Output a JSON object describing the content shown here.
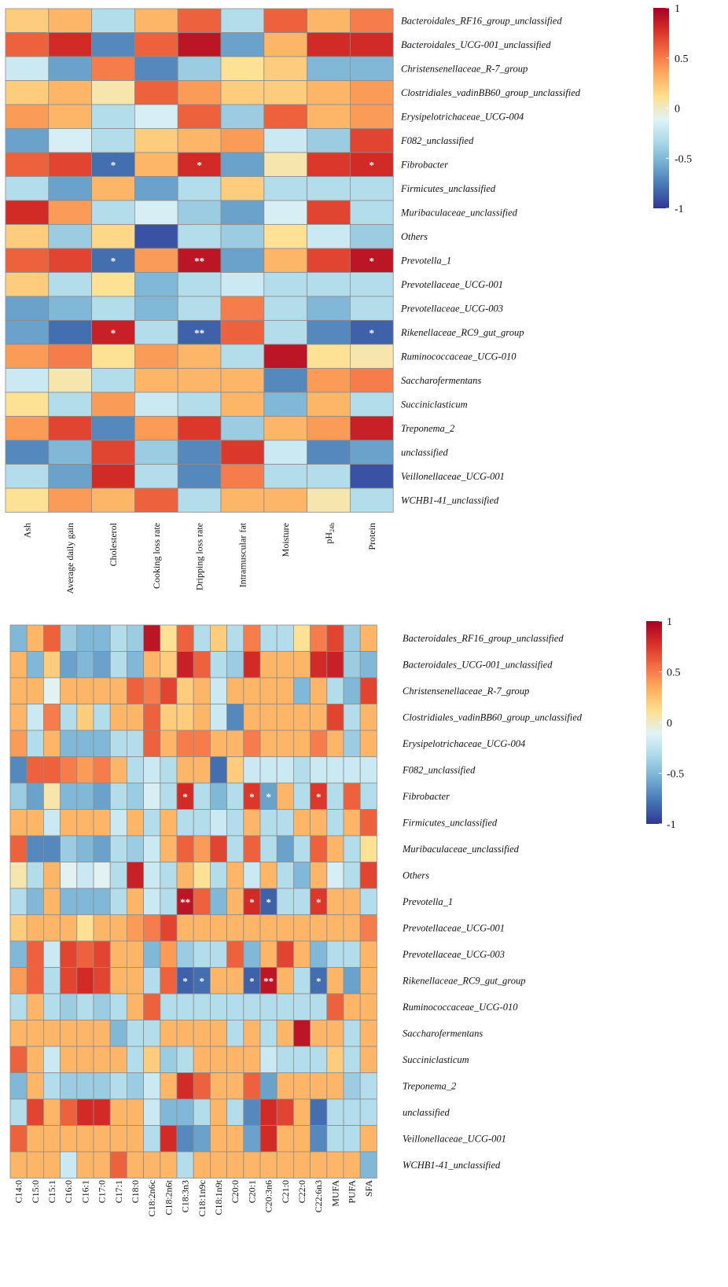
{
  "colors": {
    "scale": [
      "#313695",
      "#4575b4",
      "#74add1",
      "#abd9e9",
      "#e0f3f8",
      "#fee090",
      "#fdae61",
      "#f46d43",
      "#d73027",
      "#a50026"
    ],
    "grid": "#8c8c8c",
    "significance": "#ffffff"
  },
  "chart_data": [
    {
      "type": "heatmap",
      "title": "",
      "rows": [
        "Bacteroidales_RF16_group_unclassified",
        "Bacteroidales_UCG-001_unclassified",
        "Christensenellaceae_R-7_group",
        "Clostridiales_vadinBB60_group_unclassified",
        "Erysipelotrichaceae_UCG-004",
        "F082_unclassified",
        "Fibrobacter",
        "Firmicutes_unclassified",
        "Muribaculaceae_unclassified",
        "Others",
        "Prevotella_1",
        "Prevotellaceae_UCG-001",
        "Prevotellaceae_UCG-003",
        "Rikenellaceae_RC9_gut_group",
        "Ruminococcaceae_UCG-010",
        "Saccharofermentans",
        "Succiniclasticum",
        "Treponema_2",
        "unclassified",
        "Veillonellaceae_UCG-001",
        "WCHB1-41_unclassified"
      ],
      "columns": [
        "Ash",
        "Average daily gain",
        "Cholesterol",
        "Cooking loss rate",
        "Dripping loss rate",
        "Intramuscular fat",
        "Moisture",
        "pH",
        "Protein"
      ],
      "values": [
        [
          0.2,
          0.3,
          -0.3,
          0.3,
          0.6,
          -0.3,
          0.6,
          0.3,
          0.5
        ],
        [
          0.6,
          0.8,
          -0.7,
          0.6,
          0.9,
          -0.6,
          0.3,
          0.8,
          0.8
        ],
        [
          -0.2,
          -0.6,
          0.5,
          -0.7,
          -0.4,
          0.1,
          0.2,
          -0.5,
          -0.5
        ],
        [
          0.2,
          0.3,
          0.05,
          0.6,
          0.4,
          0.2,
          0.2,
          0.3,
          0.4
        ],
        [
          0.4,
          0.3,
          -0.3,
          -0.15,
          0.6,
          -0.4,
          0.6,
          0.3,
          0.4
        ],
        [
          -0.6,
          -0.15,
          -0.3,
          0.2,
          0.3,
          0.4,
          -0.2,
          -0.4,
          0.7
        ],
        [
          0.6,
          0.7,
          -0.8,
          0.3,
          0.8,
          -0.6,
          0.05,
          0.75,
          0.8
        ],
        [
          -0.3,
          -0.6,
          0.3,
          -0.6,
          -0.3,
          0.2,
          -0.3,
          -0.3,
          -0.3
        ],
        [
          0.8,
          0.4,
          -0.3,
          -0.15,
          -0.4,
          -0.6,
          -0.15,
          0.7,
          -0.3
        ],
        [
          0.2,
          -0.4,
          0.15,
          -0.9,
          -0.3,
          -0.4,
          0.1,
          -0.2,
          -0.4
        ],
        [
          0.6,
          0.7,
          -0.8,
          0.4,
          0.9,
          -0.6,
          0.3,
          0.7,
          0.9
        ],
        [
          0.2,
          -0.3,
          0.1,
          -0.5,
          -0.3,
          -0.2,
          -0.3,
          -0.3,
          -0.3
        ],
        [
          -0.6,
          -0.5,
          -0.3,
          -0.5,
          -0.3,
          0.5,
          -0.3,
          -0.5,
          -0.3
        ],
        [
          -0.6,
          -0.8,
          0.85,
          -0.3,
          -0.85,
          0.6,
          -0.3,
          -0.7,
          -0.85
        ],
        [
          0.4,
          0.5,
          0.1,
          0.4,
          0.3,
          -0.3,
          0.9,
          0.1,
          0.05
        ],
        [
          -0.2,
          0.05,
          -0.3,
          0.3,
          0.3,
          0.3,
          -0.7,
          0.4,
          0.5
        ],
        [
          0.1,
          -0.3,
          0.4,
          -0.2,
          -0.3,
          0.3,
          -0.5,
          0.3,
          -0.3
        ],
        [
          0.4,
          0.7,
          -0.7,
          0.4,
          0.75,
          -0.4,
          0.3,
          0.4,
          0.85
        ],
        [
          -0.7,
          -0.5,
          0.7,
          -0.4,
          -0.7,
          0.75,
          -0.2,
          -0.7,
          -0.6
        ],
        [
          -0.3,
          -0.6,
          0.8,
          -0.3,
          -0.7,
          0.5,
          -0.3,
          -0.3,
          -0.9
        ],
        [
          0.1,
          0.4,
          0.3,
          0.6,
          -0.3,
          0.3,
          0.3,
          0.05,
          -0.3
        ]
      ],
      "significance": [
        {
          "row": 6,
          "col": 2,
          "label": "*"
        },
        {
          "row": 6,
          "col": 4,
          "label": "*"
        },
        {
          "row": 6,
          "col": 8,
          "label": "*"
        },
        {
          "row": 10,
          "col": 2,
          "label": "*"
        },
        {
          "row": 10,
          "col": 4,
          "label": "**"
        },
        {
          "row": 10,
          "col": 8,
          "label": "*"
        },
        {
          "row": 13,
          "col": 2,
          "label": "*"
        },
        {
          "row": 13,
          "col": 4,
          "label": "**"
        },
        {
          "row": 13,
          "col": 8,
          "label": "*"
        }
      ],
      "colorbar": {
        "range": [
          -1,
          1
        ],
        "ticks": [
          1,
          0.5,
          0,
          -0.5,
          -1
        ],
        "tick_labels": [
          "1",
          "0.5",
          "0",
          "-0.5",
          "-1"
        ]
      }
    },
    {
      "type": "heatmap",
      "title": "",
      "rows": [
        "Bacteroidales_RF16_group_unclassified",
        "Bacteroidales_UCG-001_unclassified",
        "Christensenellaceae_R-7_group",
        "Clostridiales_vadinBB60_group_unclassified",
        "Erysipelotrichaceae_UCG-004",
        "F082_unclassified",
        "Fibrobacter",
        "Firmicutes_unclassified",
        "Muribaculaceae_unclassified",
        "Others",
        "Prevotella_1",
        "Prevotellaceae_UCG-001",
        "Prevotellaceae_UCG-003",
        "Rikenellaceae_RC9_gut_group",
        "Ruminococcaceae_UCG-010",
        "Saccharofermentans",
        "Succiniclasticum",
        "Treponema_2",
        "unclassified",
        "Veillonellaceae_UCG-001",
        "WCHB1-41_unclassified"
      ],
      "columns": [
        "C14:0",
        "C15:0",
        "C15:1",
        "C16:0",
        "C16:1",
        "C17:0",
        "C17:1",
        "C18:0",
        "C18:2n6c",
        "C18:2n6t",
        "C18:3n3",
        "C18:1n9c",
        "C18:1n9t",
        "C20:0",
        "C20:1",
        "C20:3n6",
        "C21:0",
        "C22:0",
        "C22:6n3",
        "MUFA",
        "PUFA",
        "SFA"
      ],
      "values": [
        [
          -0.5,
          0.3,
          0.6,
          -0.4,
          -0.5,
          -0.5,
          -0.3,
          -0.4,
          0.9,
          0.1,
          0.6,
          -0.3,
          0.2,
          -0.3,
          0.5,
          -0.3,
          -0.3,
          0.1,
          0.5,
          0.7,
          -0.4,
          0.3
        ],
        [
          0.3,
          -0.5,
          0.2,
          -0.6,
          -0.5,
          -0.6,
          -0.3,
          -0.5,
          0.3,
          0.2,
          0.85,
          0.6,
          -0.3,
          -0.4,
          0.8,
          0.3,
          0.3,
          0.3,
          0.8,
          0.85,
          -0.4,
          -0.5
        ],
        [
          0.3,
          0.3,
          -0.1,
          0.3,
          0.3,
          0.3,
          0.3,
          0.6,
          0.5,
          0.7,
          0.2,
          0.3,
          -0.2,
          0.3,
          0.3,
          0.3,
          0.3,
          -0.5,
          0.3,
          -0.3,
          -0.5,
          0.7
        ],
        [
          0.3,
          -0.2,
          0.5,
          -0.3,
          0.2,
          -0.3,
          0.3,
          0.3,
          0.6,
          0.2,
          0.2,
          0.3,
          -0.2,
          -0.7,
          0.3,
          0.3,
          0.3,
          0.3,
          0.3,
          0.7,
          -0.3,
          0.3
        ],
        [
          0.4,
          -0.3,
          0.3,
          -0.5,
          -0.5,
          -0.5,
          -0.3,
          -0.3,
          0.6,
          0.3,
          0.5,
          0.5,
          0.3,
          0.3,
          0.5,
          0.3,
          0.3,
          0.3,
          0.5,
          0.3,
          -0.4,
          0.3
        ],
        [
          -0.7,
          0.6,
          0.6,
          0.5,
          0.4,
          0.5,
          0.3,
          -0.3,
          -0.2,
          -0.3,
          0.3,
          0.3,
          -0.8,
          0.2,
          -0.2,
          -0.2,
          -0.2,
          -0.3,
          -0.2,
          -0.2,
          -0.2,
          -0.2
        ],
        [
          -0.4,
          -0.6,
          0.05,
          -0.5,
          -0.5,
          -0.6,
          -0.3,
          -0.4,
          -0.15,
          -0.3,
          0.8,
          -0.3,
          -0.5,
          -0.3,
          0.75,
          -0.6,
          0.3,
          -0.3,
          0.75,
          -0.3,
          0.6,
          -0.3
        ],
        [
          0.3,
          0.3,
          -0.2,
          0.3,
          0.3,
          0.3,
          -0.2,
          0.3,
          -0.3,
          0.3,
          -0.3,
          -0.3,
          -0.2,
          -0.3,
          0.3,
          -0.3,
          -0.3,
          0.3,
          0.3,
          -0.3,
          0.3,
          0.6
        ],
        [
          0.6,
          -0.7,
          -0.7,
          -0.4,
          -0.5,
          -0.6,
          -0.3,
          -0.4,
          -0.2,
          0.3,
          0.6,
          0.4,
          0.7,
          -0.3,
          0.6,
          -0.3,
          -0.6,
          -0.3,
          0.6,
          0.3,
          -0.3,
          0.1
        ],
        [
          0.05,
          -0.3,
          0.3,
          -0.1,
          -0.2,
          -0.1,
          -0.3,
          0.85,
          -0.2,
          -0.3,
          0.3,
          0.1,
          -0.3,
          0.3,
          -0.2,
          0.3,
          -0.3,
          -0.5,
          0.3,
          -0.15,
          -0.3,
          0.7
        ],
        [
          -0.3,
          -0.5,
          0.3,
          -0.5,
          -0.5,
          -0.5,
          -0.3,
          0.3,
          -0.2,
          -0.3,
          0.9,
          0.6,
          -0.5,
          0.3,
          0.8,
          -0.85,
          -0.3,
          -0.3,
          0.75,
          0.3,
          0.3,
          -0.3
        ],
        [
          0.2,
          0.3,
          0.3,
          0.3,
          0.1,
          0.3,
          0.3,
          0.4,
          0.5,
          0.7,
          0.3,
          0.3,
          0.3,
          0.3,
          0.3,
          0.3,
          0.3,
          0.3,
          0.3,
          0.3,
          0.3,
          0.5
        ],
        [
          -0.5,
          0.6,
          -0.2,
          0.7,
          0.6,
          0.7,
          0.3,
          0.3,
          -0.5,
          0.4,
          -0.4,
          -0.3,
          -0.3,
          0.6,
          -0.5,
          0.3,
          0.7,
          0.3,
          -0.5,
          -0.3,
          -0.3,
          0.3
        ],
        [
          0.4,
          0.6,
          -0.3,
          0.7,
          0.8,
          0.7,
          0.3,
          0.3,
          -0.3,
          0.6,
          -0.85,
          -0.8,
          0.3,
          0.3,
          -0.85,
          0.9,
          0.3,
          -0.3,
          -0.8,
          0.3,
          -0.6,
          0.3
        ],
        [
          -0.3,
          0.3,
          -0.3,
          -0.4,
          -0.3,
          -0.4,
          -0.3,
          0.3,
          0.6,
          -0.3,
          -0.3,
          -0.3,
          -0.3,
          -0.3,
          -0.3,
          -0.3,
          -0.3,
          -0.3,
          -0.3,
          0.6,
          0.3,
          0.3
        ],
        [
          0.3,
          0.3,
          0.3,
          0.3,
          0.3,
          0.3,
          -0.5,
          -0.3,
          -0.3,
          0.3,
          0.3,
          0.3,
          0.3,
          -0.3,
          0.3,
          -0.3,
          0.3,
          0.9,
          0.3,
          0.3,
          -0.3,
          0.3
        ],
        [
          0.6,
          0.3,
          -0.2,
          0.3,
          0.3,
          0.3,
          0.3,
          -0.3,
          0.2,
          -0.4,
          -0.3,
          0.3,
          0.3,
          0.3,
          0.3,
          -0.2,
          -0.3,
          -0.3,
          -0.3,
          0.2,
          -0.3,
          0.3
        ],
        [
          -0.5,
          0.3,
          -0.3,
          -0.4,
          -0.4,
          -0.4,
          -0.3,
          -0.4,
          -0.2,
          0.3,
          0.8,
          0.6,
          0.3,
          0.3,
          0.6,
          -0.6,
          0.3,
          0.3,
          0.3,
          0.3,
          -0.4,
          -0.3
        ],
        [
          -0.3,
          0.7,
          0.3,
          0.6,
          0.8,
          0.8,
          0.3,
          0.3,
          -0.2,
          -0.5,
          -0.5,
          -0.3,
          0.3,
          -0.3,
          -0.7,
          0.8,
          0.7,
          0.3,
          -0.8,
          -0.3,
          -0.3,
          -0.3
        ],
        [
          0.6,
          0.3,
          0.3,
          0.3,
          0.3,
          0.3,
          0.3,
          0.3,
          -0.3,
          0.8,
          -0.7,
          -0.6,
          0.3,
          0.3,
          -0.6,
          0.8,
          0.3,
          0.3,
          -0.7,
          -0.3,
          -0.3,
          0.3
        ],
        [
          0.3,
          0.3,
          0.3,
          -0.2,
          0.3,
          0.3,
          0.6,
          0.3,
          0.3,
          0.3,
          -0.3,
          0.3,
          0.3,
          0.3,
          0.3,
          0.3,
          0.3,
          0.3,
          0.3,
          0.3,
          0.3,
          -0.5
        ]
      ],
      "significance": [
        {
          "row": 6,
          "col": 10,
          "label": "*"
        },
        {
          "row": 6,
          "col": 14,
          "label": "*"
        },
        {
          "row": 6,
          "col": 15,
          "label": "*"
        },
        {
          "row": 6,
          "col": 18,
          "label": "*"
        },
        {
          "row": 10,
          "col": 10,
          "label": "**"
        },
        {
          "row": 10,
          "col": 14,
          "label": "*"
        },
        {
          "row": 10,
          "col": 15,
          "label": "*"
        },
        {
          "row": 10,
          "col": 18,
          "label": "*"
        },
        {
          "row": 13,
          "col": 10,
          "label": "*"
        },
        {
          "row": 13,
          "col": 11,
          "label": "*"
        },
        {
          "row": 13,
          "col": 14,
          "label": "*"
        },
        {
          "row": 13,
          "col": 15,
          "label": "**"
        },
        {
          "row": 13,
          "col": 18,
          "label": "*"
        }
      ],
      "colorbar": {
        "range": [
          -1,
          1
        ],
        "ticks": [
          1,
          0.5,
          0,
          -0.5,
          -1
        ],
        "tick_labels": [
          "1",
          "0.5",
          "0",
          "-0.5",
          "-1"
        ]
      }
    }
  ]
}
